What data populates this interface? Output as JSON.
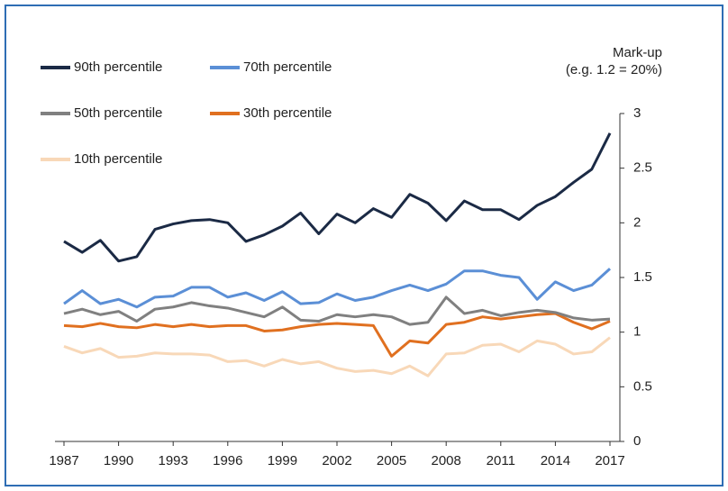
{
  "chart_data": {
    "type": "line",
    "y_label": [
      "Mark-up",
      "(e.g. 1.2 = 20%)"
    ],
    "x": [
      1987,
      1988,
      1989,
      1990,
      1991,
      1992,
      1993,
      1994,
      1995,
      1996,
      1997,
      1998,
      1999,
      2000,
      2001,
      2002,
      2003,
      2004,
      2005,
      2006,
      2007,
      2008,
      2009,
      2010,
      2011,
      2012,
      2013,
      2014,
      2015,
      2016,
      2017
    ],
    "xlim": [
      1987,
      2017
    ],
    "xticks": [
      1987,
      1990,
      1993,
      1996,
      1999,
      2002,
      2005,
      2008,
      2011,
      2014,
      2017
    ],
    "ylim": [
      0,
      3
    ],
    "yticks": [
      0,
      0.5,
      1,
      1.5,
      2,
      2.5,
      3
    ],
    "y_axis_side": "right",
    "grid": false,
    "series": [
      {
        "name": "90th percentile",
        "color": "#1b2a45",
        "values": [
          1.83,
          1.73,
          1.84,
          1.65,
          1.69,
          1.94,
          1.99,
          2.02,
          2.03,
          2.0,
          1.83,
          1.89,
          1.97,
          2.09,
          1.9,
          2.08,
          2.0,
          2.13,
          2.05,
          2.26,
          2.18,
          2.02,
          2.2,
          2.12,
          2.12,
          2.03,
          2.16,
          2.24,
          2.37,
          2.49,
          2.82
        ]
      },
      {
        "name": "70th percentile",
        "color": "#5b8fd6",
        "values": [
          1.26,
          1.38,
          1.26,
          1.3,
          1.23,
          1.32,
          1.33,
          1.41,
          1.41,
          1.32,
          1.36,
          1.29,
          1.37,
          1.26,
          1.27,
          1.35,
          1.29,
          1.32,
          1.38,
          1.43,
          1.38,
          1.44,
          1.56,
          1.56,
          1.52,
          1.5,
          1.3,
          1.46,
          1.38,
          1.43,
          1.58
        ]
      },
      {
        "name": "50th percentile",
        "color": "#808080",
        "values": [
          1.17,
          1.21,
          1.16,
          1.19,
          1.1,
          1.21,
          1.23,
          1.27,
          1.24,
          1.22,
          1.18,
          1.14,
          1.23,
          1.11,
          1.1,
          1.16,
          1.14,
          1.16,
          1.14,
          1.07,
          1.09,
          1.32,
          1.17,
          1.2,
          1.15,
          1.18,
          1.2,
          1.18,
          1.13,
          1.11,
          1.12
        ]
      },
      {
        "name": "30th percentile",
        "color": "#e07020",
        "values": [
          1.06,
          1.05,
          1.08,
          1.05,
          1.04,
          1.07,
          1.05,
          1.07,
          1.05,
          1.06,
          1.06,
          1.01,
          1.02,
          1.05,
          1.07,
          1.08,
          1.07,
          1.06,
          0.78,
          0.92,
          0.9,
          1.07,
          1.09,
          1.14,
          1.12,
          1.14,
          1.16,
          1.17,
          1.09,
          1.03,
          1.1
        ]
      },
      {
        "name": "10th percentile",
        "color": "#f8d8b8",
        "values": [
          0.87,
          0.81,
          0.85,
          0.77,
          0.78,
          0.81,
          0.8,
          0.8,
          0.79,
          0.73,
          0.74,
          0.69,
          0.75,
          0.71,
          0.73,
          0.67,
          0.64,
          0.65,
          0.62,
          0.69,
          0.6,
          0.8,
          0.81,
          0.88,
          0.89,
          0.82,
          0.92,
          0.89,
          0.8,
          0.82,
          0.95
        ]
      }
    ]
  }
}
